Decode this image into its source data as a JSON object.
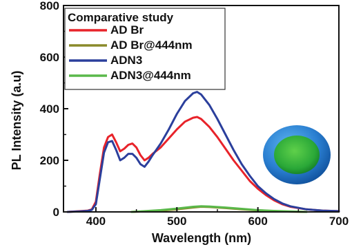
{
  "chart_data": {
    "type": "line",
    "xlabel": "Wavelength (nm)",
    "ylabel": "PL Intensity (a.u)",
    "xlim": [
      360,
      700
    ],
    "ylim": [
      0,
      800
    ],
    "xticks": [
      400,
      500,
      600,
      700
    ],
    "yticks": [
      0,
      200,
      400,
      600,
      800
    ],
    "grid": false,
    "legend_title": "Comparative study",
    "legend_position": "top-left",
    "series": [
      {
        "name": "AD Br",
        "color": "#e8232a",
        "x": [
          365,
          380,
          390,
          395,
          400,
          405,
          410,
          415,
          420,
          425,
          430,
          435,
          440,
          445,
          450,
          455,
          460,
          465,
          470,
          480,
          490,
          500,
          510,
          520,
          525,
          530,
          540,
          550,
          560,
          570,
          580,
          590,
          600,
          610,
          620,
          630,
          640,
          660,
          680,
          700
        ],
        "y": [
          0,
          3,
          5,
          10,
          40,
          150,
          250,
          290,
          300,
          270,
          235,
          245,
          260,
          265,
          250,
          220,
          200,
          210,
          225,
          250,
          285,
          320,
          350,
          365,
          368,
          360,
          330,
          290,
          245,
          200,
          160,
          120,
          90,
          65,
          45,
          30,
          20,
          10,
          5,
          3
        ]
      },
      {
        "name": "AD Br@444nm",
        "color": "#8a8a2a",
        "x": [
          444,
          460,
          480,
          500,
          520,
          530,
          540,
          560,
          580,
          600,
          620,
          640,
          660
        ],
        "y": [
          0,
          2,
          5,
          10,
          17,
          20,
          19,
          15,
          10,
          6,
          3,
          1,
          0
        ]
      },
      {
        "name": "ADN3",
        "color": "#2b3f9c",
        "x": [
          365,
          380,
          390,
          395,
          400,
          405,
          410,
          415,
          420,
          425,
          430,
          435,
          440,
          445,
          450,
          455,
          460,
          465,
          470,
          480,
          490,
          500,
          510,
          520,
          525,
          530,
          540,
          550,
          560,
          570,
          580,
          590,
          600,
          610,
          620,
          630,
          640,
          660,
          680,
          700
        ],
        "y": [
          0,
          2,
          4,
          8,
          30,
          130,
          230,
          270,
          275,
          240,
          200,
          210,
          225,
          225,
          210,
          185,
          175,
          195,
          220,
          265,
          320,
          380,
          430,
          460,
          465,
          455,
          415,
          360,
          300,
          240,
          185,
          140,
          100,
          72,
          50,
          33,
          22,
          10,
          5,
          3
        ]
      },
      {
        "name": "ADN3@444nm",
        "color": "#5ab84a",
        "x": [
          444,
          460,
          480,
          500,
          520,
          530,
          540,
          560,
          580,
          600,
          620,
          640,
          660
        ],
        "y": [
          0,
          3,
          7,
          13,
          20,
          22,
          21,
          17,
          12,
          7,
          4,
          2,
          0
        ]
      }
    ]
  }
}
